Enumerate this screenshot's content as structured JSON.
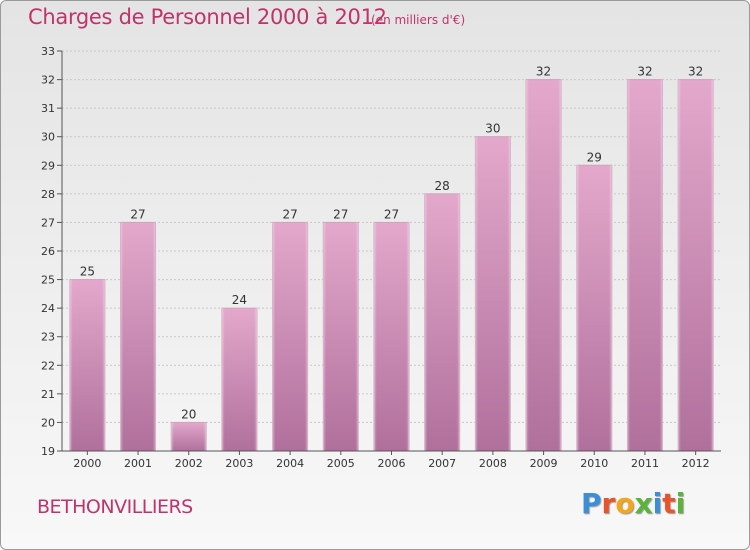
{
  "title": "Charges de Personnel 2000 à 2012",
  "subtitle": "(en milliers d'€)",
  "location": "BETHONVILLIERS",
  "logo": {
    "letters": [
      "P",
      "r",
      "o",
      "x",
      "i",
      "t",
      "i"
    ],
    "colors": [
      "#3a8fd6",
      "#e8532b",
      "#f2a71b",
      "#5bb33b",
      "#3a8fd6",
      "#e8532b",
      "#5bb33b"
    ]
  },
  "chart_data": {
    "type": "bar",
    "title": "Charges de Personnel 2000 à 2012",
    "subtitle": "(en milliers d'€)",
    "categories": [
      "2000",
      "2001",
      "2002",
      "2003",
      "2004",
      "2005",
      "2006",
      "2007",
      "2008",
      "2009",
      "2010",
      "2011",
      "2012"
    ],
    "values": [
      25,
      27,
      20,
      24,
      27,
      27,
      27,
      28,
      30,
      32,
      29,
      32,
      32
    ],
    "ylim": [
      19,
      33
    ],
    "yticks": [
      19,
      20,
      21,
      22,
      23,
      24,
      25,
      26,
      27,
      28,
      29,
      30,
      31,
      32,
      33
    ],
    "grid": true,
    "bar_color_top": "#e3a8cb",
    "bar_color_bottom": "#b0709c"
  }
}
